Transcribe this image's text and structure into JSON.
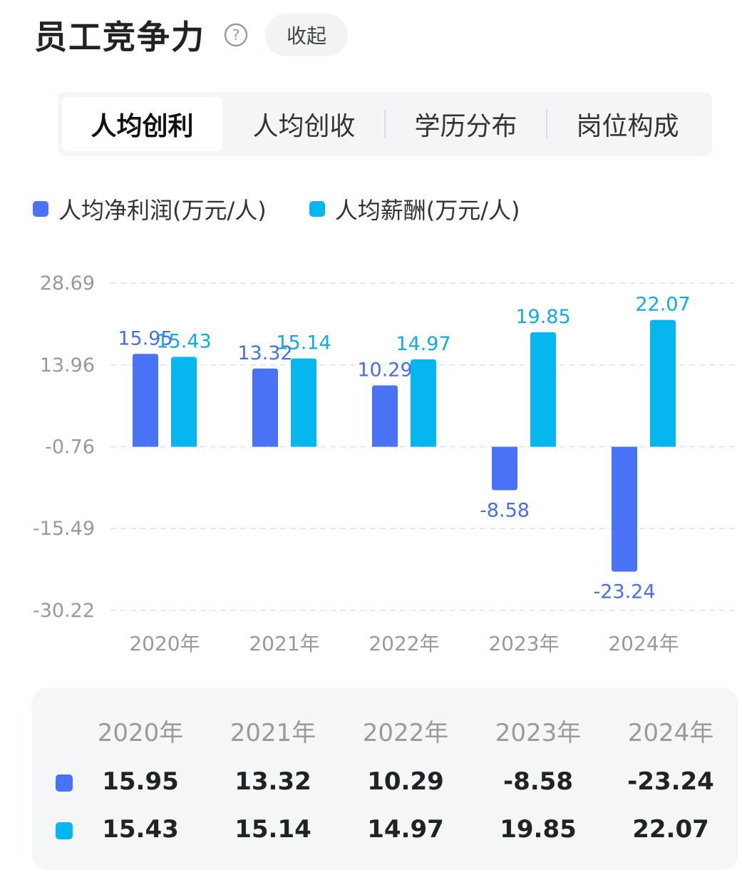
{
  "header": {
    "title": "员工竞争力",
    "collapse_label": "收起"
  },
  "tabs": [
    {
      "label": "人均创利",
      "active": true
    },
    {
      "label": "人均创收",
      "active": false
    },
    {
      "label": "学历分布",
      "active": false
    },
    {
      "label": "岗位构成",
      "active": false
    }
  ],
  "colors": {
    "profit": "#4a72f5",
    "salary": "#06b6ee",
    "profit_label": "#4a6fe0",
    "salary_label": "#13a9e3",
    "axis_text": "#999999",
    "grid": "#e3e3e3"
  },
  "chart_data": {
    "type": "bar",
    "categories": [
      "2020年",
      "2021年",
      "2022年",
      "2023年",
      "2024年"
    ],
    "series": [
      {
        "name": "人均净利润(万元/人)",
        "values": [
          15.95,
          13.32,
          10.29,
          -8.58,
          -23.24
        ]
      },
      {
        "name": "人均薪酬(万元/人)",
        "values": [
          15.43,
          15.14,
          14.97,
          19.85,
          22.07
        ]
      }
    ],
    "y_ticks": [
      "28.69",
      "13.96",
      "-0.76",
      "-15.49",
      "-30.22"
    ],
    "ylim": [
      -30.22,
      28.69
    ],
    "baseline": -0.76,
    "grid": true,
    "legend_position": "top-left"
  },
  "table": {
    "years": [
      "2020年",
      "2021年",
      "2022年",
      "2023年",
      "2024年"
    ],
    "rows": [
      {
        "series": "profit",
        "values": [
          "15.95",
          "13.32",
          "10.29",
          "-8.58",
          "-23.24"
        ]
      },
      {
        "series": "salary",
        "values": [
          "15.43",
          "15.14",
          "14.97",
          "19.85",
          "22.07"
        ]
      }
    ]
  }
}
